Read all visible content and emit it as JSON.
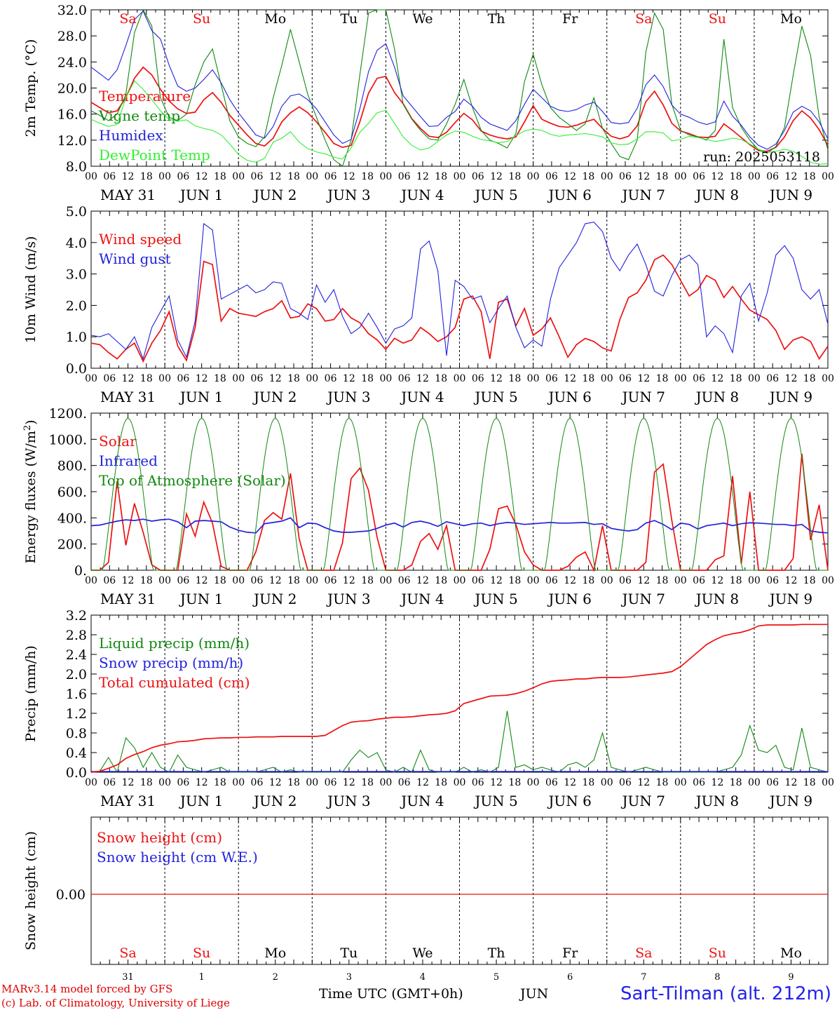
{
  "chart_data": [
    {
      "type": "line",
      "ylabel": "2m Temp. (°C)",
      "ylim": [
        8,
        32
      ],
      "yticks": [
        "8.0",
        "12.0",
        "16.0",
        "20.0",
        "24.0",
        "28.0",
        "32.0"
      ],
      "annotation": "run: 2025053118",
      "series": [
        {
          "name": "Temperature",
          "color": "#ee1111",
          "values": [
            17.8,
            17,
            16.2,
            16.5,
            18.5,
            21.5,
            23.2,
            22,
            19.8,
            18,
            16.8,
            16.1,
            16.3,
            18.2,
            19.3,
            17.8,
            15.8,
            14.3,
            12.8,
            11.5,
            11.1,
            12.3,
            14.8,
            16.2,
            17.1,
            16.2,
            14.8,
            13.2,
            11.5,
            10.9,
            11.2,
            14.8,
            19.2,
            21.5,
            21.8,
            19.3,
            17.6,
            15.3,
            13.8,
            12.6,
            12.4,
            13.2,
            14.7,
            16.1,
            15.1,
            13.4,
            12.8,
            12.4,
            12.2,
            12.5,
            14.8,
            17.3,
            15.2,
            14.6,
            14.1,
            14,
            14.3,
            14.8,
            15.2,
            13.8,
            12.6,
            12.2,
            12.6,
            14.2,
            17.9,
            19.5,
            17.4,
            14.6,
            13.4,
            13,
            12.5,
            12.4,
            12.6,
            14.5,
            13.5,
            12.4,
            11.3,
            10.4,
            10.3,
            10.9,
            12.5,
            15,
            16.5,
            15.4,
            13.6,
            11.2
          ]
        },
        {
          "name": "Vigne temp",
          "color": "#118811",
          "values": [
            16.5,
            15.8,
            15,
            16,
            19,
            28.5,
            32,
            29.5,
            18.5,
            15.5,
            15,
            16,
            20.5,
            24,
            26,
            20.5,
            15,
            12.5,
            11.5,
            11,
            12.5,
            18.5,
            23.5,
            29,
            24,
            19,
            15.5,
            12,
            9,
            8,
            12,
            22,
            31.5,
            32,
            33,
            26,
            17.5,
            15.2,
            13.5,
            12.2,
            12,
            14.5,
            17.5,
            21.3,
            17,
            13.5,
            12,
            11.5,
            10.8,
            13,
            21,
            25.2,
            20.5,
            17,
            15.5,
            14.5,
            13.5,
            14.5,
            18.5,
            13.8,
            11.5,
            9.5,
            9,
            12,
            25.5,
            31.5,
            29,
            17.5,
            13.5,
            12.8,
            12.5,
            12,
            13.5,
            27.5,
            17,
            14,
            12,
            10.5,
            10,
            11,
            14,
            22,
            29.5,
            25,
            15.5,
            10.5
          ]
        },
        {
          "name": "Humidex",
          "color": "#2222dd",
          "values": [
            23.2,
            22.2,
            21.2,
            22.8,
            26.5,
            30.5,
            31.8,
            28.8,
            27.5,
            23.5,
            20.3,
            19.5,
            20,
            21.3,
            22.8,
            20.8,
            18.2,
            16.2,
            14.5,
            12.8,
            12.3,
            14.1,
            17.2,
            18.8,
            19.1,
            18.2,
            16.8,
            14.8,
            12.8,
            11.5,
            12.1,
            16.8,
            22.5,
            25.8,
            26.8,
            23.2,
            18.8,
            17.2,
            15.6,
            14.1,
            14.2,
            15.5,
            16.4,
            18.3,
            17.2,
            15.5,
            14.5,
            14,
            13.5,
            15,
            17.5,
            19.8,
            18.5,
            17.2,
            16.6,
            16.4,
            16.7,
            17.4,
            17.8,
            16.4,
            14.7,
            14.5,
            14.7,
            16.9,
            20.5,
            22,
            20.2,
            17.4,
            16,
            15.5,
            14.8,
            14.4,
            14.8,
            18,
            15.7,
            14.3,
            12.5,
            11.2,
            10.6,
            11.4,
            13.5,
            16.3,
            17.2,
            16.5,
            14.8,
            12.2
          ]
        },
        {
          "name": "DewPoint Temp",
          "color": "#33ee33",
          "values": [
            15.2,
            14.6,
            14.1,
            14.4,
            18.5,
            21.1,
            19.8,
            18.2,
            16.5,
            15.2,
            14.9,
            15.1,
            14.2,
            13.8,
            13.5,
            12.8,
            11.4,
            9.8,
            8.9,
            8.6,
            9.2,
            11.7,
            12.3,
            13.3,
            11.7,
            10.7,
            10.2,
            9.9,
            9.4,
            9.1,
            10.8,
            13.2,
            14.6,
            16.2,
            16.6,
            14.6,
            12.5,
            11.2,
            10.5,
            10.8,
            11.8,
            12.8,
            13.4,
            13.2,
            12.6,
            12.1,
            11.9,
            11.6,
            11.8,
            12.7,
            13.4,
            13.7,
            13.5,
            12.9,
            12.6,
            12.8,
            12.9,
            13,
            12.8,
            12.5,
            11.6,
            11.3,
            11.4,
            12.2,
            13.3,
            13.3,
            13.1,
            11.9,
            12.1,
            12.6,
            12.4,
            12.1,
            11.8,
            12,
            12.3,
            12.1,
            11.4,
            10.6,
            10.1,
            10.3,
            10.6,
            10.3,
            9.5,
            8.6,
            8.3,
            8.4
          ]
        }
      ]
    },
    {
      "type": "line",
      "ylabel": "10m Wind (m/s)",
      "ylim": [
        0,
        5
      ],
      "yticks": [
        "0.0",
        "1.0",
        "2.0",
        "3.0",
        "4.0",
        "5.0"
      ],
      "series": [
        {
          "name": "Wind speed",
          "color": "#ee1111",
          "values": [
            0.8,
            0.75,
            0.5,
            0.3,
            0.6,
            0.8,
            0.22,
            0.8,
            1.2,
            1.8,
            0.7,
            0.25,
            1.3,
            3.4,
            3.3,
            1.5,
            1.9,
            1.75,
            1.7,
            1.65,
            1.8,
            1.9,
            2.15,
            1.6,
            1.65,
            2.05,
            1.9,
            1.5,
            1.55,
            1.9,
            1.6,
            1.45,
            1.1,
            0.9,
            0.6,
            0.95,
            0.8,
            0.9,
            1.3,
            1.1,
            0.85,
            1.0,
            1.3,
            2.2,
            2.3,
            1.8,
            0.3,
            2.1,
            2.2,
            1.35,
            1.9,
            1.05,
            1.25,
            1.6,
            1.0,
            0.35,
            0.75,
            0.95,
            0.85,
            0.65,
            0.55,
            1.55,
            2.25,
            2.4,
            2.8,
            3.45,
            3.6,
            3.3,
            2.8,
            2.3,
            2.5,
            2.95,
            2.8,
            2.25,
            2.6,
            2.2,
            1.85,
            1.7,
            1.55,
            1.2,
            0.6,
            0.9,
            1.0,
            0.85,
            0.3,
            0.7
          ]
        },
        {
          "name": "Wind gust",
          "color": "#2222dd",
          "values": [
            1.05,
            1.0,
            1.1,
            0.85,
            0.6,
            1.0,
            0.3,
            1.3,
            1.8,
            2.3,
            0.9,
            0.35,
            1.5,
            4.6,
            4.4,
            2.2,
            2.35,
            2.5,
            2.65,
            2.4,
            2.5,
            2.75,
            2.7,
            1.9,
            1.75,
            1.55,
            2.65,
            2.1,
            2.5,
            1.65,
            1.1,
            1.3,
            1.75,
            1.3,
            0.8,
            1.25,
            1.35,
            1.6,
            3.8,
            4.05,
            3.1,
            0.4,
            2.8,
            2.6,
            2.2,
            2.3,
            1.45,
            1.9,
            2.3,
            1.3,
            0.65,
            0.9,
            0.7,
            2.2,
            3.2,
            3.6,
            4.0,
            4.6,
            4.65,
            4.35,
            3.5,
            3.1,
            3.6,
            3.95,
            3.3,
            2.45,
            2.3,
            2.95,
            3.45,
            3.6,
            3.3,
            1.0,
            1.35,
            1.1,
            0.5,
            2.3,
            2.7,
            1.5,
            2.4,
            3.6,
            3.9,
            3.5,
            2.5,
            2.2,
            2.5,
            1.4
          ]
        }
      ]
    },
    {
      "type": "line",
      "ylabel": "Energy fluxes (W/m²)",
      "ylim": [
        0,
        1200
      ],
      "yticks": [
        "0.",
        "200.",
        "400.",
        "600.",
        "800.",
        "1000.",
        "1200."
      ],
      "series": [
        {
          "name": "Solar",
          "color": "#ee1111",
          "values": [
            0,
            0,
            60,
            680,
            190,
            510,
            290,
            40,
            0,
            0,
            0,
            430,
            260,
            520,
            360,
            30,
            0,
            0,
            0,
            140,
            380,
            440,
            390,
            740,
            240,
            0,
            0,
            0,
            0,
            210,
            700,
            780,
            610,
            250,
            0,
            0,
            0,
            40,
            220,
            280,
            160,
            340,
            0,
            0,
            0,
            0,
            160,
            470,
            490,
            350,
            140,
            40,
            0,
            0,
            0,
            30,
            100,
            140,
            0,
            340,
            0,
            0,
            0,
            0,
            60,
            750,
            810,
            380,
            0,
            0,
            0,
            0,
            80,
            110,
            720,
            50,
            600,
            0,
            0,
            0,
            0,
            90,
            890,
            230,
            500,
            0
          ]
        },
        {
          "name": "Infrared",
          "color": "#2222dd",
          "values": [
            340,
            345,
            360,
            375,
            385,
            380,
            390,
            375,
            385,
            390,
            370,
            325,
            375,
            380,
            375,
            370,
            330,
            305,
            290,
            285,
            355,
            365,
            375,
            400,
            325,
            360,
            355,
            325,
            300,
            290,
            290,
            295,
            300,
            320,
            345,
            360,
            330,
            365,
            375,
            360,
            335,
            370,
            355,
            340,
            355,
            360,
            340,
            355,
            365,
            360,
            350,
            355,
            360,
            365,
            360,
            360,
            362,
            365,
            350,
            355,
            320,
            308,
            300,
            310,
            360,
            380,
            350,
            310,
            360,
            350,
            315,
            340,
            350,
            360,
            340,
            355,
            362,
            360,
            355,
            350,
            350,
            340,
            350,
            300,
            290,
            285
          ]
        },
        {
          "name": "Top of Atmosphere (Solar)",
          "color": "#118811",
          "values": []
        }
      ]
    },
    {
      "type": "line",
      "ylabel": "Precip (mm/h)",
      "ylim": [
        0,
        3.2
      ],
      "yticks": [
        "0.0",
        "0.4",
        "0.8",
        "1.2",
        "1.6",
        "2.0",
        "2.4",
        "2.8",
        "3.2"
      ],
      "series": [
        {
          "name": "Liquid precip (mm/h)",
          "color": "#118811",
          "values": [
            0,
            0.02,
            0.3,
            0,
            0.7,
            0.5,
            0.1,
            0.4,
            0.1,
            0,
            0.35,
            0.1,
            0.05,
            0,
            0.05,
            0.1,
            0,
            0,
            0,
            0,
            0.05,
            0.1,
            0,
            0.05,
            0,
            0,
            0,
            0,
            0,
            0,
            0.25,
            0.45,
            0.3,
            0.4,
            0.05,
            0,
            0.1,
            0,
            0.45,
            0.05,
            0,
            0,
            0,
            0.1,
            0,
            0.05,
            0,
            0.1,
            1.25,
            0.1,
            0.15,
            0.05,
            0.1,
            0.05,
            0,
            0.15,
            0.2,
            0.1,
            0.25,
            0.8,
            0.1,
            0.05,
            0,
            0.05,
            0.1,
            0.05,
            0,
            0,
            0,
            0,
            0,
            0,
            0,
            0.05,
            0.1,
            0.35,
            0.95,
            0.45,
            0.4,
            0.55,
            0.1,
            0.05,
            0.9,
            0.1,
            0.05,
            0
          ]
        },
        {
          "name": "Snow precip (mm/h)",
          "color": "#2222dd",
          "values": []
        },
        {
          "name": "Total cumulated (cm)",
          "color": "#ee1111",
          "values": [
            0,
            0.02,
            0.08,
            0.15,
            0.28,
            0.36,
            0.42,
            0.5,
            0.55,
            0.58,
            0.62,
            0.63,
            0.65,
            0.68,
            0.69,
            0.7,
            0.7,
            0.71,
            0.71,
            0.72,
            0.72,
            0.72,
            0.73,
            0.73,
            0.73,
            0.73,
            0.73,
            0.75,
            0.85,
            0.95,
            1.02,
            1.04,
            1.05,
            1.08,
            1.1,
            1.12,
            1.12,
            1.13,
            1.15,
            1.17,
            1.18,
            1.2,
            1.25,
            1.4,
            1.45,
            1.5,
            1.55,
            1.56,
            1.57,
            1.6,
            1.65,
            1.72,
            1.8,
            1.85,
            1.87,
            1.88,
            1.9,
            1.9,
            1.92,
            1.93,
            1.93,
            1.93,
            1.94,
            1.96,
            1.98,
            2.0,
            2.02,
            2.05,
            2.15,
            2.3,
            2.45,
            2.6,
            2.7,
            2.78,
            2.82,
            2.85,
            2.9,
            2.98,
            3.0,
            3.0,
            3.0,
            3.0,
            3.01,
            3.01,
            3.01,
            3.01
          ]
        }
      ]
    },
    {
      "type": "line",
      "ylabel": "Snow height (cm)",
      "yticks": [
        "0.00"
      ],
      "series": [
        {
          "name": "Snow height (cm)",
          "color": "#ee1111",
          "values": [
            0,
            0
          ]
        },
        {
          "name": "Snow height (cm W.E.)",
          "color": "#2222dd",
          "values": []
        }
      ]
    }
  ],
  "days": [
    {
      "name": "Sa",
      "color": "#ee1111",
      "date": "MAY 31",
      "num": "31"
    },
    {
      "name": "Su",
      "color": "#ee1111",
      "date": "JUN  1",
      "num": "1"
    },
    {
      "name": "Mo",
      "color": "#000000",
      "date": "JUN  2",
      "num": "2"
    },
    {
      "name": "Tu",
      "color": "#000000",
      "date": "JUN  3",
      "num": "3"
    },
    {
      "name": "We",
      "color": "#000000",
      "date": "JUN  4",
      "num": "4"
    },
    {
      "name": "Th",
      "color": "#000000",
      "date": "JUN  5",
      "num": "5"
    },
    {
      "name": "Fr",
      "color": "#000000",
      "date": "JUN  6",
      "num": "6"
    },
    {
      "name": "Sa",
      "color": "#ee1111",
      "date": "JUN  7",
      "num": "7"
    },
    {
      "name": "Su",
      "color": "#ee1111",
      "date": "JUN  8",
      "num": "8"
    },
    {
      "name": "Mo",
      "color": "#000000",
      "date": "JUN  9",
      "num": "9"
    }
  ],
  "hour_ticks": [
    "00",
    "06",
    "12",
    "18"
  ],
  "footer": {
    "credit_line1": "MARv3.14 model forced by GFS",
    "credit_line2": "(c) Lab. of Climatology, University of Liege",
    "xlabel": "Time UTC (GMT+0h)",
    "month": "JUN",
    "site": "Sart-Tilman (alt. 212m)"
  }
}
